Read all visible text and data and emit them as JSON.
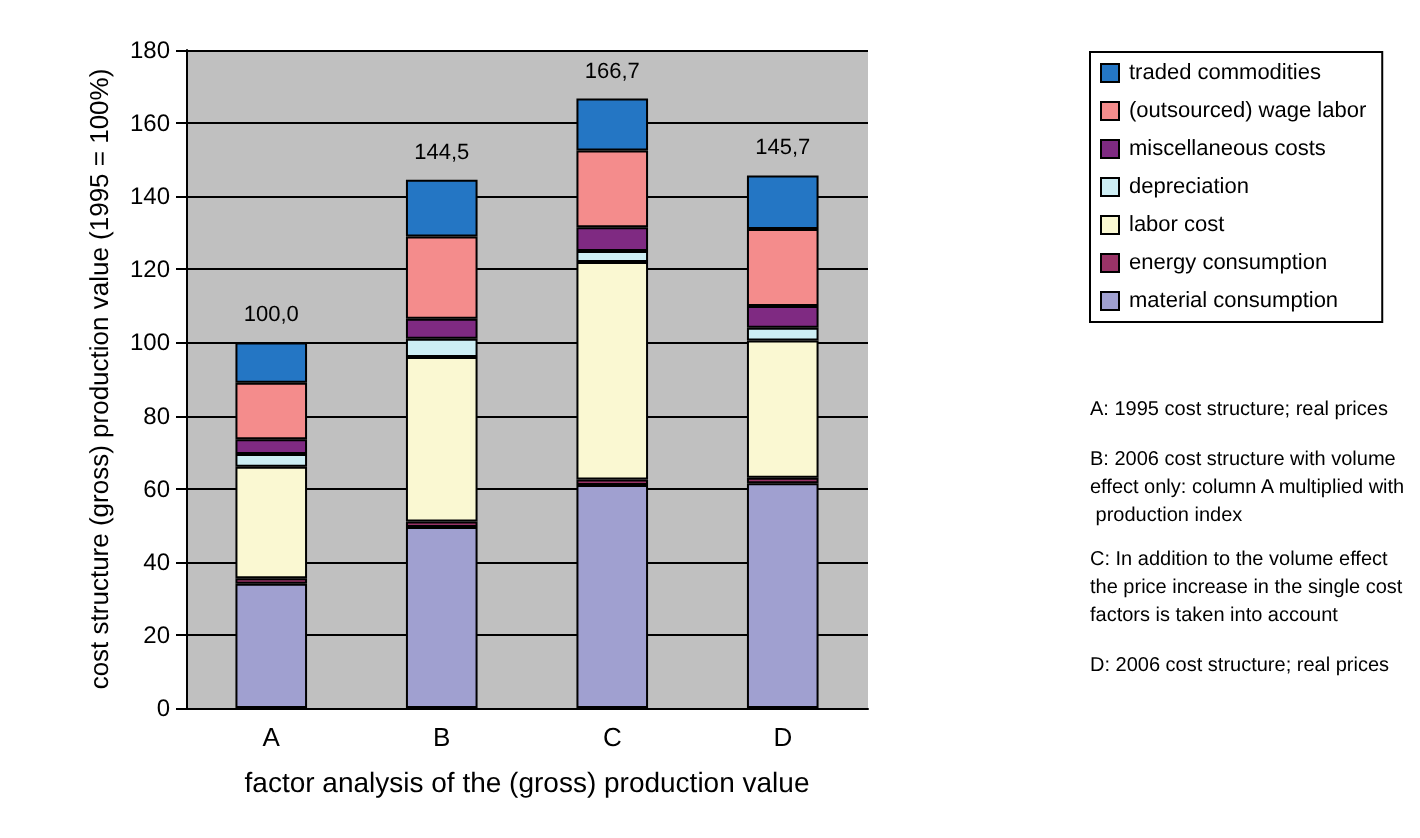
{
  "chart_data": {
    "type": "bar",
    "stacked": true,
    "xlabel": "factor analysis of the (gross) production value",
    "ylabel": "cost structure (gross) production value (1995 = 100%)",
    "categories": [
      "A",
      "B",
      "C",
      "D"
    ],
    "series": [
      {
        "name": "material consumption",
        "color": "#a0a0d0",
        "values": [
          34,
          49.5,
          61,
          61.5
        ]
      },
      {
        "name": "energy consumption",
        "color": "#993366",
        "values": [
          1.5,
          1.5,
          1.5,
          1.5
        ]
      },
      {
        "name": "labor cost",
        "color": "#faf8d2",
        "values": [
          30.5,
          45,
          59.5,
          37.5
        ]
      },
      {
        "name": "depreciation",
        "color": "#cdeef4",
        "values": [
          3.5,
          5,
          3,
          3.5
        ]
      },
      {
        "name": "miscellaneous costs",
        "color": "#7f2a82",
        "values": [
          4,
          5.5,
          6.5,
          6
        ]
      },
      {
        "name": "(outsourced) wage labor",
        "color": "#f48c8c",
        "values": [
          15.5,
          22.5,
          21,
          21
        ]
      },
      {
        "name": "traded commodities",
        "color": "#2476c4",
        "values": [
          11,
          15.5,
          14.2,
          14.7
        ]
      }
    ],
    "totals": [
      "100,0",
      "144,5",
      "166,7",
      "145,7"
    ],
    "ylim": [
      0,
      180
    ],
    "yticks": [
      0,
      20,
      40,
      60,
      80,
      100,
      120,
      140,
      160,
      180
    ],
    "grid": "y",
    "legend": "right",
    "annotations": [
      "A: 1995 cost structure; real prices",
      "B: 2006 cost structure with volume effect only: column A multiplied with production index",
      "C: In addition to the volume effect the price increase in the single cost factors is taken into account",
      "D: 2006 cost structure; real prices"
    ]
  }
}
